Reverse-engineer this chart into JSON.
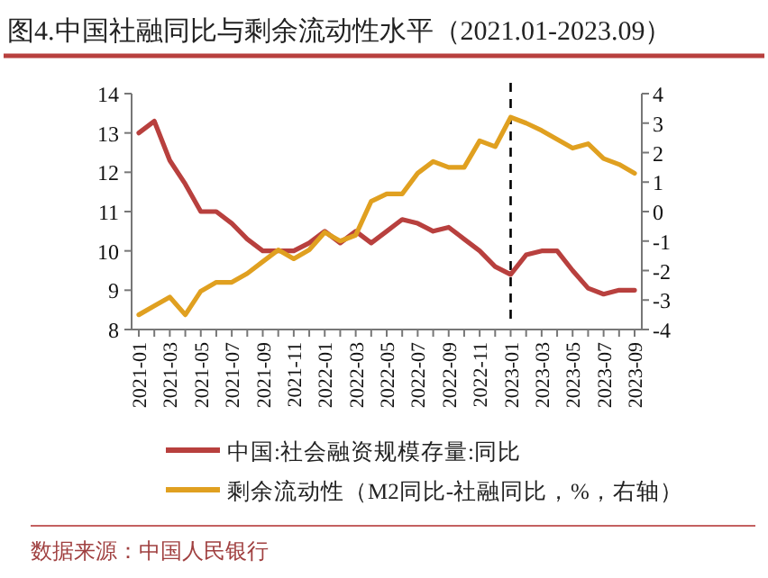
{
  "chart_data": {
    "type": "line",
    "title": "图4.中国社融同比与剩余流动性水平（2021.01-2023.09）",
    "categories": [
      "2021-01",
      null,
      "2021-03",
      null,
      "2021-05",
      null,
      "2021-07",
      null,
      "2021-09",
      null,
      "2021-11",
      null,
      "2022-01",
      null,
      "2022-03",
      null,
      "2022-05",
      null,
      "2022-07",
      null,
      "2022-09",
      null,
      "2022-11",
      null,
      "2023-01",
      null,
      "2023-03",
      null,
      "2023-05",
      null,
      "2023-07",
      null,
      "2023-09"
    ],
    "series": [
      {
        "name": "中国:社会融资规模存量:同比",
        "color": "#b8403e",
        "values": [
          13.0,
          13.3,
          12.3,
          11.7,
          11.0,
          11.0,
          10.7,
          10.3,
          10.0,
          10.0,
          10.0,
          10.2,
          10.5,
          10.2,
          10.5,
          10.2,
          10.5,
          10.8,
          10.7,
          10.5,
          10.6,
          10.3,
          10.0,
          9.6,
          9.4,
          9.9,
          10.0,
          10.0,
          9.5,
          9.05,
          8.9,
          9.0,
          9.0
        ]
      },
      {
        "name": "剩余流动性（M2同比-社融同比，%，右轴）",
        "color": "#e0a020",
        "axis": "y2",
        "values": [
          -3.5,
          -3.2,
          -2.9,
          -3.5,
          -2.7,
          -2.4,
          -2.4,
          -2.1,
          -1.7,
          -1.3,
          -1.6,
          -1.3,
          -0.7,
          -1.0,
          -0.8,
          0.35,
          0.6,
          0.6,
          1.3,
          1.7,
          1.5,
          1.5,
          2.4,
          2.2,
          3.2,
          3.0,
          2.75,
          2.45,
          2.15,
          2.3,
          1.8,
          1.6,
          1.3
        ]
      }
    ],
    "ylim": [
      8,
      14
    ],
    "yticks": [
      8,
      9,
      10,
      11,
      12,
      13,
      14
    ],
    "y2lim": [
      -4,
      4
    ],
    "y2ticks": [
      -4,
      -3,
      -2,
      -1,
      0,
      1,
      2,
      3,
      4
    ],
    "ref_lines": [
      {
        "axis": "x",
        "value": "2023-01",
        "color": "#000000",
        "line_style": "dashed"
      }
    ],
    "legend": "bottom",
    "annotations": [
      "数据来源：中国人民银行"
    ]
  }
}
